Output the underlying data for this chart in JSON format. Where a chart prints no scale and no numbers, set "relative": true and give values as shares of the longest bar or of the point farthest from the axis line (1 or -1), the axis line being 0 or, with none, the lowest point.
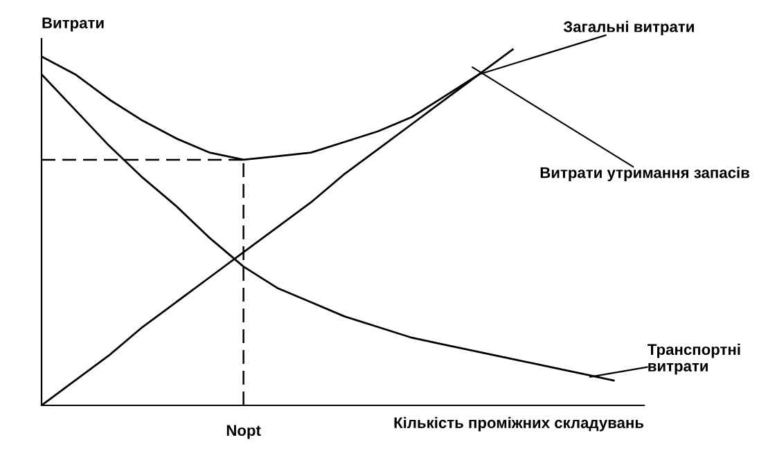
{
  "chart_data": {
    "type": "line",
    "relative": true,
    "xlabel": "Кількість проміжних складувань",
    "ylabel": "Витрати",
    "categories": [
      null,
      null,
      null,
      null,
      null,
      null,
      null,
      null,
      null,
      null,
      null,
      null,
      null,
      null,
      null,
      null,
      null,
      null
    ],
    "series": [
      {
        "name": "Загальні витрати",
        "color": "#000000",
        "values": [
          0.98,
          0.93,
          0.86,
          0.8,
          0.75,
          0.71,
          0.69,
          0.7,
          0.71,
          0.74,
          0.77,
          0.81,
          0.87,
          0.93,
          1.0,
          null,
          null,
          null
        ]
      },
      {
        "name": "Витрати утримання запасів",
        "color": "#000000",
        "values": [
          0,
          0.07,
          0.14,
          0.22,
          0.29,
          0.36,
          0.43,
          0.5,
          0.57,
          0.65,
          0.72,
          0.79,
          0.86,
          0.93,
          null,
          null,
          null,
          null
        ]
      },
      {
        "name": "Транспортні витрати",
        "color": "#000000",
        "values": [
          0.93,
          0.83,
          0.73,
          0.64,
          0.56,
          0.47,
          0.39,
          0.33,
          0.29,
          0.25,
          0.22,
          0.19,
          0.17,
          0.15,
          0.13,
          0.11,
          0.09,
          0.07
        ]
      }
    ],
    "ref_lines": [
      {
        "axis": "y",
        "value": 0.69,
        "color": "#000000",
        "line_style": "dashed"
      }
    ],
    "annotations": [
      "Nopt"
    ],
    "legend": false,
    "marker": "none",
    "line_style": "solid"
  }
}
